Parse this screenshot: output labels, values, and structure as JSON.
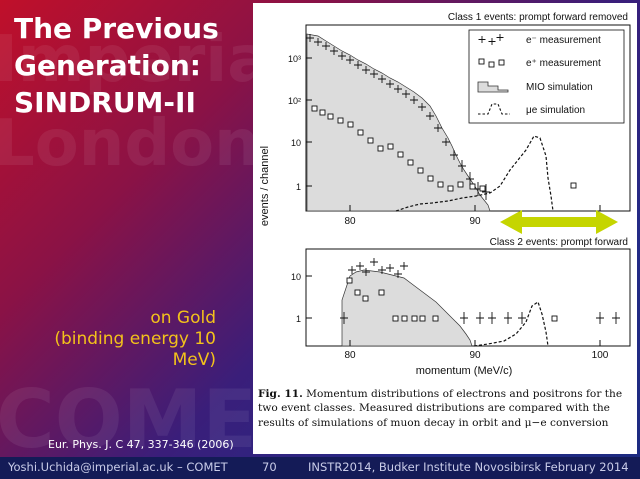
{
  "slide": {
    "title_lines": [
      "The Previous",
      "Generation:",
      "SINDRUM-II"
    ],
    "note_lines": [
      "on Gold",
      "(binding energy 10",
      "MeV)"
    ],
    "citation": "Eur. Phys. J. C 47, 337-346 (2006)",
    "watermark": {
      "words": [
        "Imperial",
        "London",
        "COMET"
      ]
    },
    "colors": {
      "title": "#ffffff",
      "note": "#f3c21b",
      "arrow": "#c5d500",
      "footer_bg": "#141b57"
    }
  },
  "figure": {
    "panel1": {
      "title": "Class 1 events: prompt forward removed",
      "ylabel": "events / channel",
      "yticks": [
        "10³",
        "10²",
        "10",
        "1"
      ],
      "xticks": [
        "80",
        "90"
      ],
      "legend": [
        {
          "label": "e⁻ measurement",
          "icon": "plus-marker"
        },
        {
          "label": "e⁺ measurement",
          "icon": "square-marker"
        },
        {
          "label": "MIO simulation",
          "icon": "filled-histogram"
        },
        {
          "label": "μe simulation",
          "icon": "dashed-line"
        }
      ]
    },
    "panel2": {
      "title": "Class 2 events: prompt forward",
      "yticks": [
        "10",
        "1"
      ],
      "xticks": [
        "80",
        "90",
        "100"
      ],
      "xlabel": "momentum  (MeV/c)"
    },
    "caption": {
      "label": "Fig. 11.",
      "text": "Momentum distributions of electrons and positrons for the two event classes. Measured distributions are compared with the results of simulations of muon decay in orbit and μ−e conversion"
    }
  },
  "footer": {
    "author": "Yoshi.Uchida@imperial.ac.uk – COMET",
    "page": "70",
    "event": "INSTR2014, Budker Institute Novosibirsk February 2014"
  }
}
